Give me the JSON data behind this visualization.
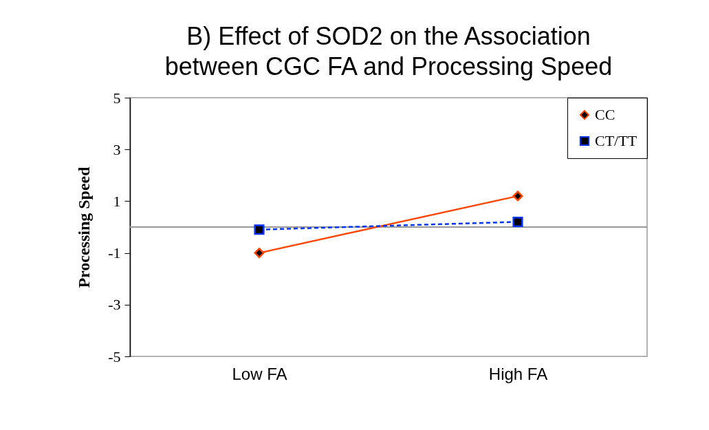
{
  "chart_data": {
    "type": "line",
    "title": [
      "B) Effect of SOD2 on the Association",
      "between CGC FA and Processing Speed"
    ],
    "ylabel": "Processing Speed",
    "categories": [
      "Low FA",
      "High FA"
    ],
    "series": [
      {
        "name": "CC",
        "color": "#ff4500",
        "values": [
          -1.0,
          1.2
        ],
        "marker": "diamond",
        "line_style": "solid"
      },
      {
        "name": "CT/TT",
        "color": "#0033ff",
        "values": [
          -0.1,
          0.2
        ],
        "marker": "square",
        "line_style": "dashed"
      }
    ],
    "ylim": [
      -5,
      5
    ],
    "yticks": [
      -5,
      -3,
      -1,
      1,
      3,
      5
    ],
    "grid": false,
    "legend": "top right",
    "ref_lines": [
      {
        "axis": "y",
        "value": 0,
        "color": "#999999"
      }
    ]
  }
}
